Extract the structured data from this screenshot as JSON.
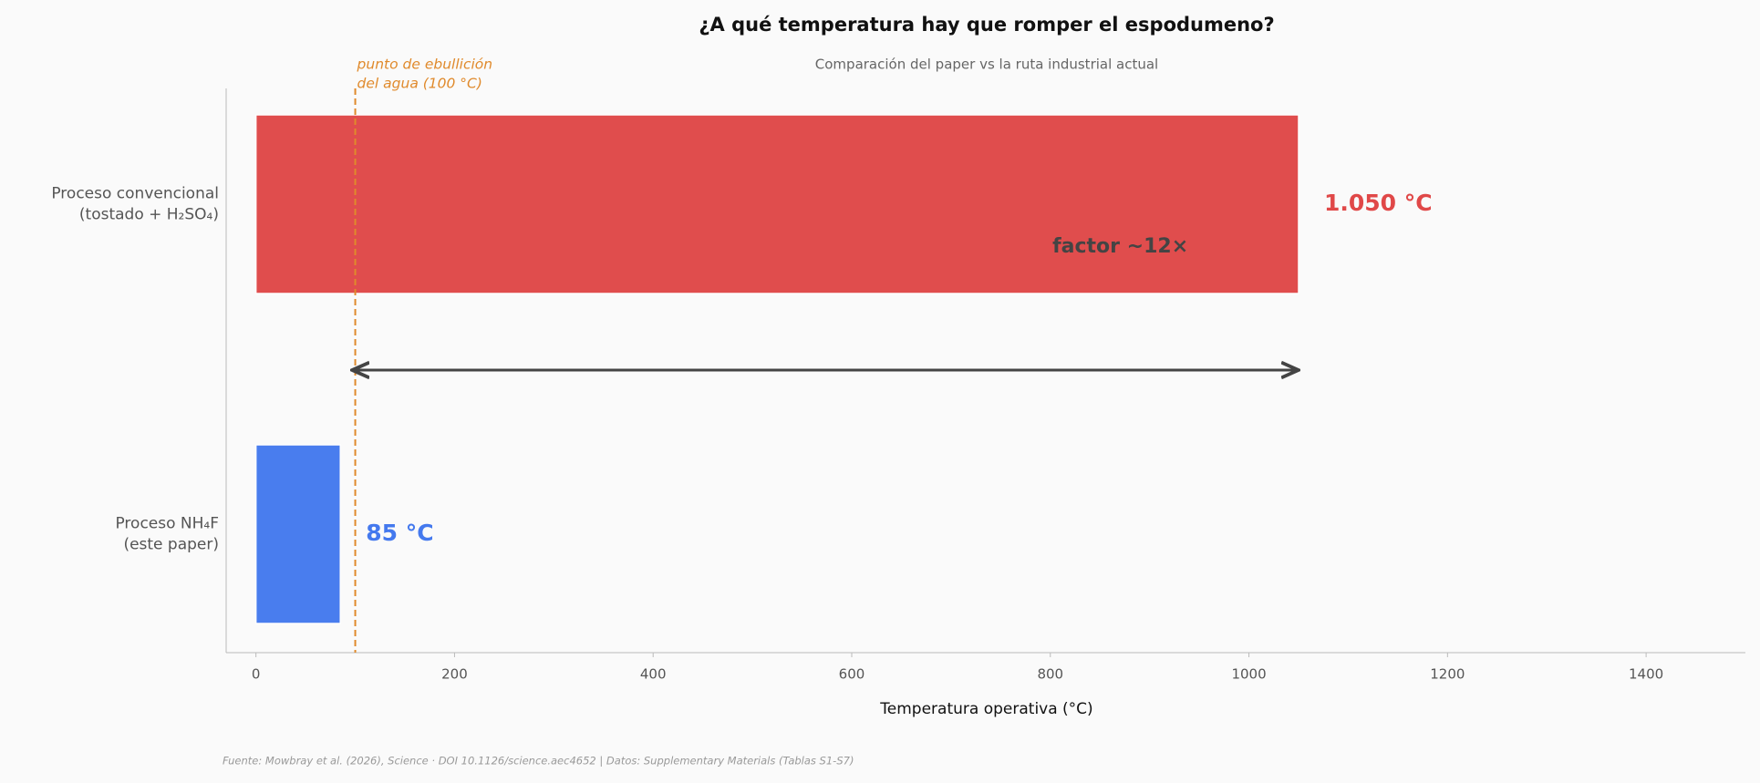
{
  "chart_data": {
    "type": "barh",
    "title": "¿A qué temperatura hay que romper el espodumeno?",
    "subtitle": "Comparación del paper vs la ruta industrial actual",
    "xlabel": "Temperatura operativa (°C)",
    "categories": [
      "Proceso convencional\n(tostado + H₂SO₄)",
      "Proceso NH₄F\n(este paper)"
    ],
    "values": [
      1050,
      85
    ],
    "value_labels": [
      "1.050 °C",
      "85 °C"
    ],
    "colors": [
      "#e04848",
      "#4479ee"
    ],
    "xlim": [
      -30,
      1500
    ],
    "xticks": [
      0,
      200,
      400,
      600,
      800,
      1000,
      1200,
      1400
    ],
    "reference_line": {
      "value": 100,
      "label": "punto de ebullición\ndel agua (100 °C)",
      "color": "#e08a2c"
    },
    "annotation": "factor ~12×",
    "source": "Fuente: Mowbray et al. (2026), Science · DOI 10.1126/science.aec4652 | Datos: Supplementary Materials (Tablas S1-S7)"
  }
}
